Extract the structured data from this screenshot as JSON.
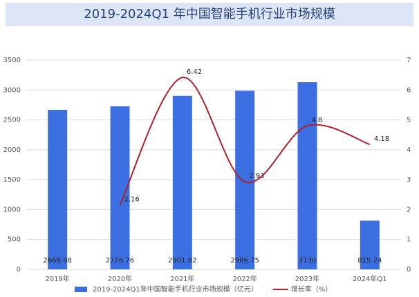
{
  "chart_data": {
    "type": "bar_line",
    "title": "2019-2024Q1 年中国智能手机行业市场规模",
    "categories": [
      "2019年",
      "2020年",
      "2021年",
      "2022年",
      "2023年",
      "2024年Q1"
    ],
    "series": [
      {
        "name": "2019-2024Q1年中国智能手机行业市场规模（亿元）",
        "color": "#3b6fe2",
        "type": "bar",
        "values": [
          2668.98,
          2726.76,
          2901.82,
          2986.75,
          3130,
          815.24
        ]
      },
      {
        "name": "增长率（%）",
        "color": "#b0202a",
        "type": "line",
        "axis": "y2",
        "values": [
          null,
          2.16,
          6.42,
          2.93,
          4.8,
          4.18
        ]
      }
    ],
    "ylim": [
      0,
      3500
    ],
    "yticks": [
      0,
      500,
      1000,
      1500,
      2000,
      2500,
      3000,
      3500
    ],
    "y2lim": [
      0,
      7
    ],
    "y2ticks": [
      0,
      1,
      2,
      3,
      4,
      5,
      6,
      7
    ],
    "grid": true,
    "legend": "bottom"
  }
}
